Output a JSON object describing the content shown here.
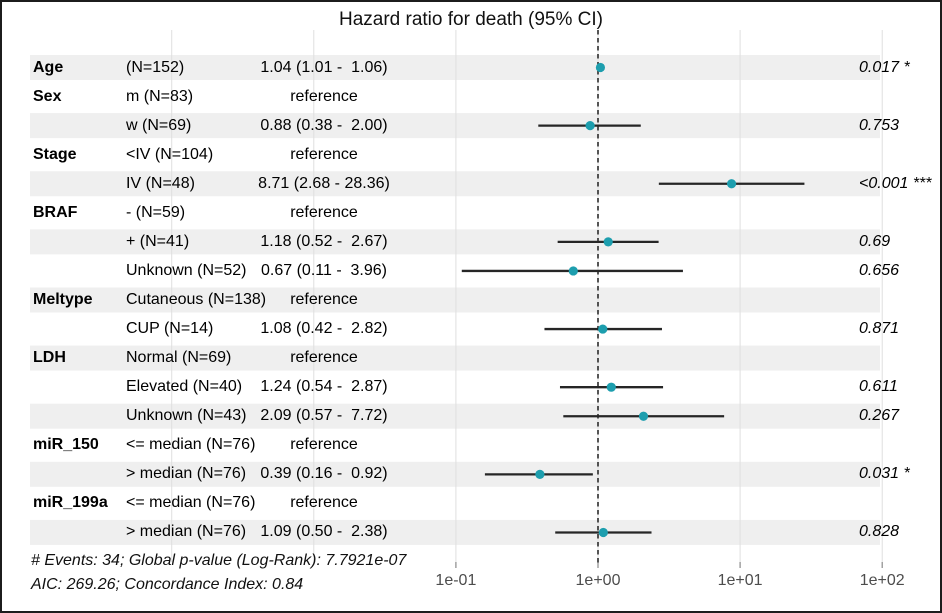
{
  "figure": {
    "title": "Hazard ratio for death (95% CI)",
    "footer_line1": "# Events: 34; Global p-value (Log-Rank): 7.7921e-07",
    "footer_line2": "AIC: 269.26; Concordance Index: 0.84"
  },
  "colors": {
    "stripe": "#efefef",
    "gridline": "#dfdfdf",
    "reference_line": "#2b2b2b",
    "ci_line": "#262626",
    "point": "#1d9eae",
    "axis_text": "#4d4d4d",
    "tick_mark": "#8a8a8a"
  },
  "chart_data": {
    "type": "forest",
    "title": "Hazard ratio for death (95% CI)",
    "x_axis": {
      "scale": "log10",
      "tick_values": [
        0.1,
        1,
        10,
        100
      ],
      "tick_labels": [
        "1e-01",
        "1e+00",
        "1e+01",
        "1e+02"
      ],
      "grid_values": [
        0.001,
        0.01,
        0.1,
        1,
        10,
        100
      ],
      "reference_value": 1,
      "xlim": [
        0.001,
        100
      ]
    },
    "rows": [
      {
        "variable": "Age",
        "level": "(N=152)",
        "estimate_label": "1.04 (1.01 -  1.06)",
        "hr": 1.04,
        "lo": 1.01,
        "hi": 1.06,
        "p": "0.017 *",
        "striped": true
      },
      {
        "variable": "Sex",
        "level": "m (N=83)",
        "estimate_label": "reference",
        "hr": null,
        "lo": null,
        "hi": null,
        "p": "",
        "striped": false
      },
      {
        "variable": "",
        "level": "w (N=69)",
        "estimate_label": "0.88 (0.38 -  2.00)",
        "hr": 0.88,
        "lo": 0.38,
        "hi": 2.0,
        "p": "0.753",
        "striped": true
      },
      {
        "variable": "Stage",
        "level": "<IV (N=104)",
        "estimate_label": "reference",
        "hr": null,
        "lo": null,
        "hi": null,
        "p": "",
        "striped": false
      },
      {
        "variable": "",
        "level": "IV (N=48)",
        "estimate_label": "8.71 (2.68 - 28.36)",
        "hr": 8.71,
        "lo": 2.68,
        "hi": 28.36,
        "p": "<0.001 ***",
        "striped": true
      },
      {
        "variable": "BRAF",
        "level": "- (N=59)",
        "estimate_label": "reference",
        "hr": null,
        "lo": null,
        "hi": null,
        "p": "",
        "striped": false
      },
      {
        "variable": "",
        "level": "+ (N=41)",
        "estimate_label": "1.18 (0.52 -  2.67)",
        "hr": 1.18,
        "lo": 0.52,
        "hi": 2.67,
        "p": "0.69",
        "striped": true
      },
      {
        "variable": "",
        "level": "Unknown (N=52)",
        "estimate_label": "0.67 (0.11 -  3.96)",
        "hr": 0.67,
        "lo": 0.11,
        "hi": 3.96,
        "p": "0.656",
        "striped": false
      },
      {
        "variable": "Meltype",
        "level": "Cutaneous (N=138)",
        "estimate_label": "reference",
        "hr": null,
        "lo": null,
        "hi": null,
        "p": "",
        "striped": true
      },
      {
        "variable": "",
        "level": "CUP (N=14)",
        "estimate_label": "1.08 (0.42 -  2.82)",
        "hr": 1.08,
        "lo": 0.42,
        "hi": 2.82,
        "p": "0.871",
        "striped": false
      },
      {
        "variable": "LDH",
        "level": "Normal (N=69)",
        "estimate_label": "reference",
        "hr": null,
        "lo": null,
        "hi": null,
        "p": "",
        "striped": true
      },
      {
        "variable": "",
        "level": "Elevated (N=40)",
        "estimate_label": "1.24 (0.54 -  2.87)",
        "hr": 1.24,
        "lo": 0.54,
        "hi": 2.87,
        "p": "0.611",
        "striped": false
      },
      {
        "variable": "",
        "level": "Unknown (N=43)",
        "estimate_label": "2.09 (0.57 -  7.72)",
        "hr": 2.09,
        "lo": 0.57,
        "hi": 7.72,
        "p": "0.267",
        "striped": true
      },
      {
        "variable": "miR_150",
        "level": "<= median (N=76)",
        "estimate_label": "reference",
        "hr": null,
        "lo": null,
        "hi": null,
        "p": "",
        "striped": false
      },
      {
        "variable": "",
        "level": "> median (N=76)",
        "estimate_label": "0.39 (0.16 -  0.92)",
        "hr": 0.39,
        "lo": 0.16,
        "hi": 0.92,
        "p": "0.031 *",
        "striped": true
      },
      {
        "variable": "miR_199a",
        "level": "<= median (N=76)",
        "estimate_label": "reference",
        "hr": null,
        "lo": null,
        "hi": null,
        "p": "",
        "striped": false
      },
      {
        "variable": "",
        "level": "> median (N=76)",
        "estimate_label": "1.09 (0.50 -  2.38)",
        "hr": 1.09,
        "lo": 0.5,
        "hi": 2.38,
        "p": "0.828",
        "striped": true
      }
    ]
  }
}
